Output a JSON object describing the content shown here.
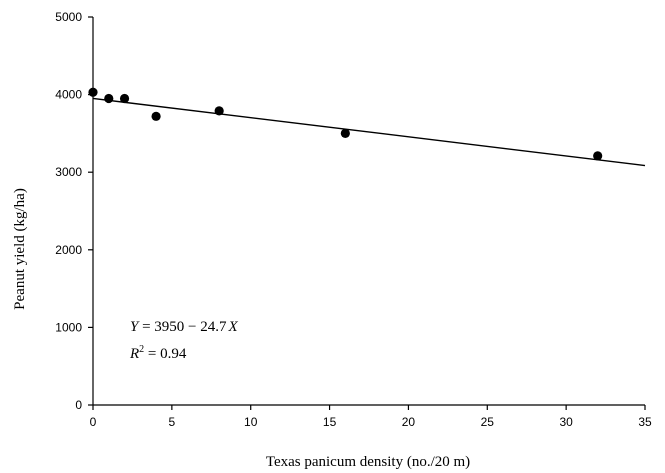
{
  "chart_data": {
    "type": "scatter",
    "title": "",
    "xlabel": "Texas panicum density (no./20 m)",
    "ylabel": "Peanut yield (kg/ha)",
    "xlim": [
      0,
      35
    ],
    "ylim": [
      0,
      5000
    ],
    "xticks": [
      0,
      5,
      10,
      15,
      20,
      25,
      30,
      35
    ],
    "yticks": [
      0,
      1000,
      2000,
      3000,
      4000,
      5000
    ],
    "grid": false,
    "series": [
      {
        "x": [
          0,
          1,
          2,
          4,
          8,
          16,
          32
        ],
        "y": [
          4030,
          3950,
          3950,
          3720,
          3790,
          3500,
          3210
        ]
      }
    ],
    "trendline": {
      "intercept": 3950,
      "slope": -24.7,
      "x_range": [
        0,
        35
      ]
    },
    "annotations": {
      "equation_lhs": "Y",
      "equation_rhs": " = 3950 − 24.7",
      "equation_var": "X",
      "r2_lhs": "R",
      "r2_sup": "2",
      "r2_rhs": " = 0.94"
    }
  }
}
